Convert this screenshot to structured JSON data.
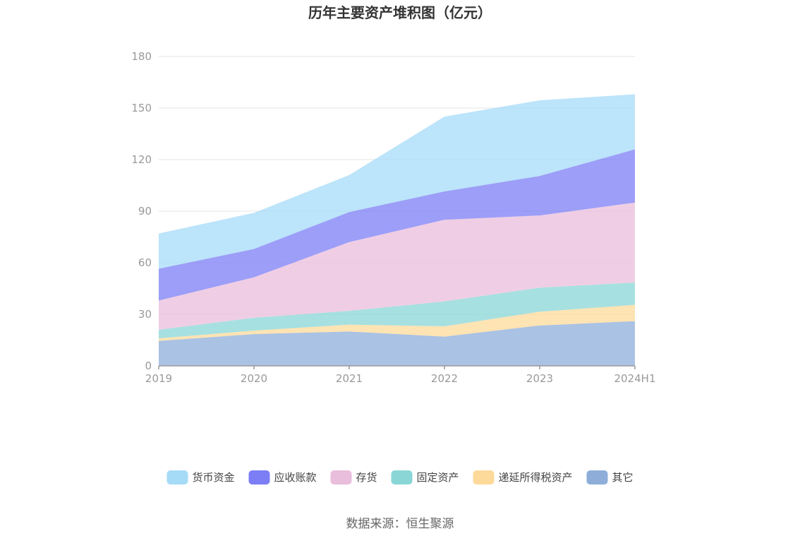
{
  "chart_data": {
    "type": "area",
    "stacked": true,
    "title": "历年主要资产堆积图（亿元）",
    "categories": [
      "2019",
      "2020",
      "2021",
      "2022",
      "2023",
      "2024H1"
    ],
    "ylim": [
      0,
      180
    ],
    "yticks": [
      0,
      30,
      60,
      90,
      120,
      150,
      180
    ],
    "grid": true,
    "legend_position": "bottom",
    "series": [
      {
        "name": "其它",
        "color": "#8eaed9",
        "values": [
          14.5,
          18.5,
          20.0,
          17.0,
          23.5,
          26.0
        ]
      },
      {
        "name": "递延所得税资产",
        "color": "#fdd99a",
        "values": [
          1.5,
          2.0,
          4.0,
          6.0,
          8.0,
          9.5
        ]
      },
      {
        "name": "固定资产",
        "color": "#8ad6d6",
        "values": [
          5.0,
          7.5,
          8.0,
          14.5,
          14.0,
          13.0
        ]
      },
      {
        "name": "存货",
        "color": "#e9bddc",
        "values": [
          17.0,
          23.5,
          40.0,
          47.5,
          42.0,
          46.5
        ]
      },
      {
        "name": "应收账款",
        "color": "#7b7ef5",
        "values": [
          18.5,
          16.5,
          17.5,
          16.5,
          23.0,
          31.0
        ]
      },
      {
        "name": "货币资金",
        "color": "#a6dbf8",
        "values": [
          20.5,
          21.0,
          21.5,
          43.5,
          44.0,
          32.0
        ]
      }
    ],
    "legend_order": [
      "货币资金",
      "应收账款",
      "存货",
      "固定资产",
      "递延所得税资产",
      "其它"
    ]
  },
  "source": "数据来源：恒生聚源"
}
